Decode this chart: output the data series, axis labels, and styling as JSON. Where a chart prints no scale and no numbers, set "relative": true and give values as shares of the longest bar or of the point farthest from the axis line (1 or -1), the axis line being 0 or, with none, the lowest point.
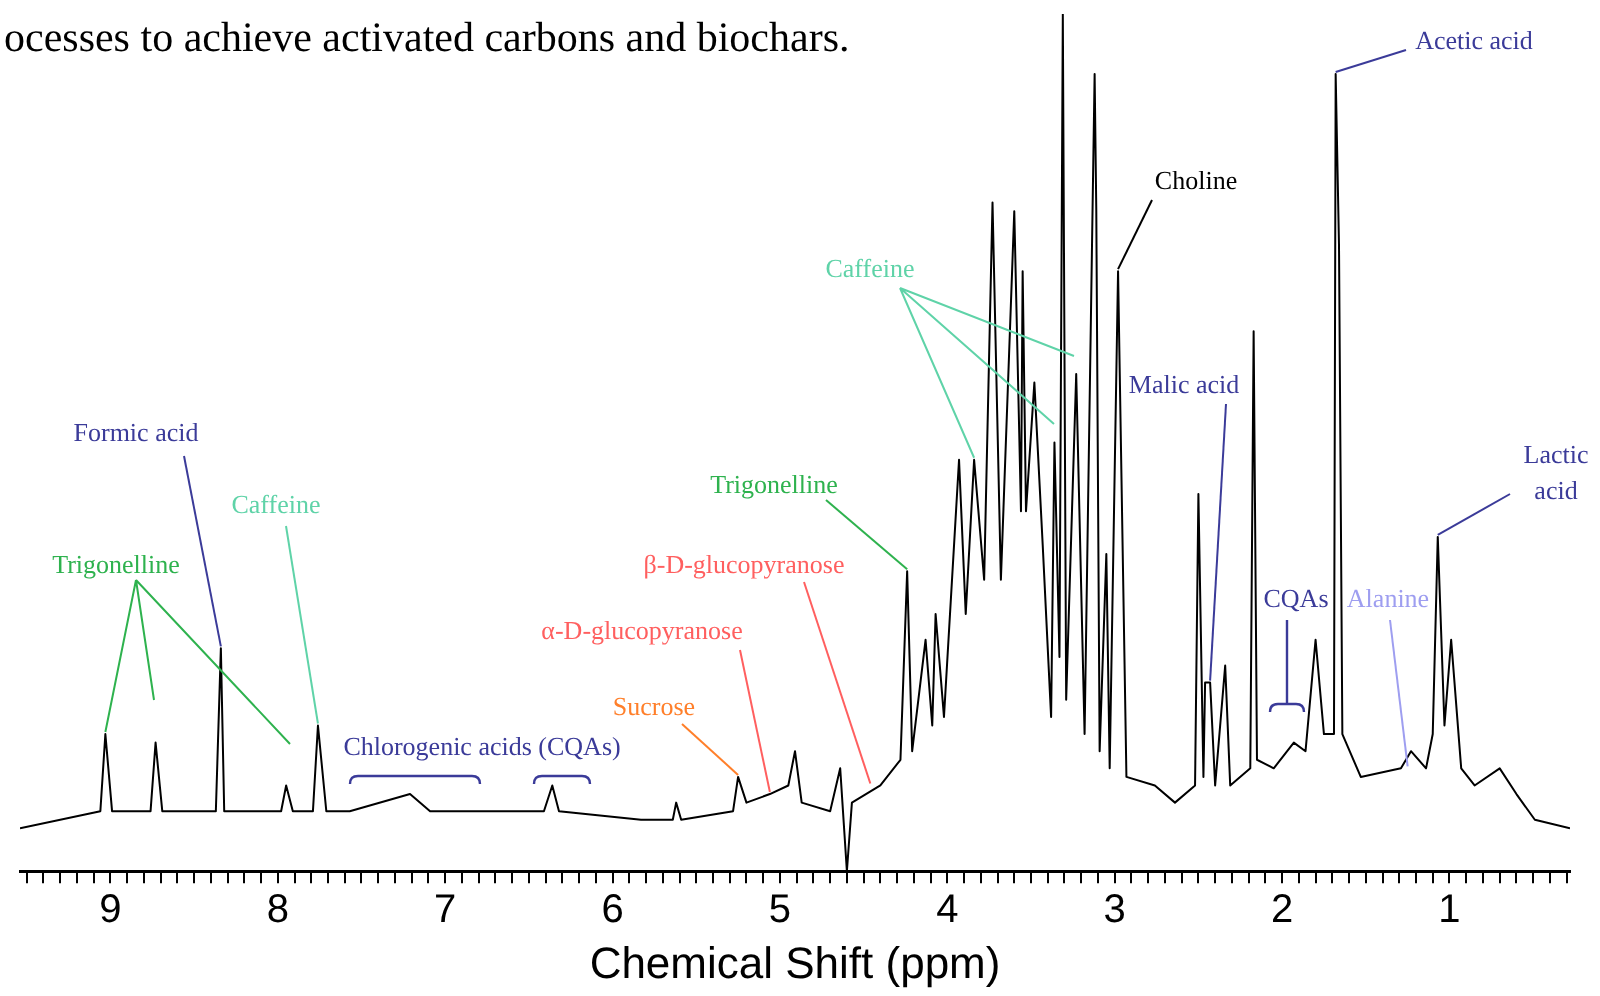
{
  "chart_data": {
    "type": "line",
    "relative": true,
    "xlabel": "Chemical Shift (ppm)",
    "xlim": [
      9.54,
      0.28
    ],
    "xticks": [
      {
        "value": 9.5,
        "label": null
      },
      {
        "value": 9.4,
        "label": null
      },
      {
        "value": 9.3,
        "label": null
      },
      {
        "value": 9.2,
        "label": null
      },
      {
        "value": 9.1,
        "label": null
      },
      9,
      {
        "value": 8.9,
        "label": null
      },
      {
        "value": 8.8,
        "label": null
      },
      {
        "value": 8.7,
        "label": null
      },
      {
        "value": 8.6,
        "label": null
      },
      {
        "value": 8.5,
        "label": null
      },
      {
        "value": 8.4,
        "label": null
      },
      {
        "value": 8.3,
        "label": null
      },
      {
        "value": 8.2,
        "label": null
      },
      {
        "value": 8.1,
        "label": null
      },
      8,
      {
        "value": 7.9,
        "label": null
      },
      {
        "value": 7.8,
        "label": null
      },
      {
        "value": 7.7,
        "label": null
      },
      {
        "value": 7.6,
        "label": null
      },
      {
        "value": 7.5,
        "label": null
      },
      {
        "value": 7.4,
        "label": null
      },
      {
        "value": 7.3,
        "label": null
      },
      {
        "value": 7.2,
        "label": null
      },
      {
        "value": 7.1,
        "label": null
      },
      7,
      {
        "value": 6.9,
        "label": null
      },
      {
        "value": 6.8,
        "label": null
      },
      {
        "value": 6.7,
        "label": null
      },
      {
        "value": 6.6,
        "label": null
      },
      {
        "value": 6.5,
        "label": null
      },
      {
        "value": 6.4,
        "label": null
      },
      {
        "value": 6.3,
        "label": null
      },
      {
        "value": 6.2,
        "label": null
      },
      {
        "value": 6.1,
        "label": null
      },
      6,
      {
        "value": 5.9,
        "label": null
      },
      {
        "value": 5.8,
        "label": null
      },
      {
        "value": 5.7,
        "label": null
      },
      {
        "value": 5.6,
        "label": null
      },
      {
        "value": 5.5,
        "label": null
      },
      {
        "value": 5.4,
        "label": null
      },
      {
        "value": 5.3,
        "label": null
      },
      {
        "value": 5.2,
        "label": null
      },
      {
        "value": 5.1,
        "label": null
      },
      5,
      {
        "value": 4.9,
        "label": null
      },
      {
        "value": 4.8,
        "label": null
      },
      {
        "value": 4.7,
        "label": null
      },
      {
        "value": 4.6,
        "label": null
      },
      {
        "value": 4.5,
        "label": null
      },
      {
        "value": 4.4,
        "label": null
      },
      {
        "value": 4.3,
        "label": null
      },
      {
        "value": 4.2,
        "label": null
      },
      {
        "value": 4.1,
        "label": null
      },
      4,
      {
        "value": 3.9,
        "label": null
      },
      {
        "value": 3.8,
        "label": null
      },
      {
        "value": 3.7,
        "label": null
      },
      {
        "value": 3.6,
        "label": null
      },
      {
        "value": 3.5,
        "label": null
      },
      {
        "value": 3.4,
        "label": null
      },
      {
        "value": 3.3,
        "label": null
      },
      {
        "value": 3.2,
        "label": null
      },
      {
        "value": 3.1,
        "label": null
      },
      3,
      {
        "value": 2.9,
        "label": null
      },
      {
        "value": 2.8,
        "label": null
      },
      {
        "value": 2.7,
        "label": null
      },
      {
        "value": 2.6,
        "label": null
      },
      {
        "value": 2.5,
        "label": null
      },
      {
        "value": 2.4,
        "label": null
      },
      {
        "value": 2.3,
        "label": null
      },
      {
        "value": 2.2,
        "label": null
      },
      {
        "value": 2.1,
        "label": null
      },
      2,
      {
        "value": 1.9,
        "label": null
      },
      {
        "value": 1.8,
        "label": null
      },
      {
        "value": 1.7,
        "label": null
      },
      {
        "value": 1.6,
        "label": null
      },
      {
        "value": 1.5,
        "label": null
      },
      {
        "value": 1.4,
        "label": null
      },
      {
        "value": 1.3,
        "label": null
      },
      {
        "value": 1.2,
        "label": null
      },
      {
        "value": 1.1,
        "label": null
      },
      1,
      {
        "value": 0.9,
        "label": null
      },
      {
        "value": 0.8,
        "label": null
      },
      {
        "value": 0.7,
        "label": null
      },
      {
        "value": 0.6,
        "label": null
      },
      {
        "value": 0.5,
        "label": null
      },
      {
        "value": 0.4,
        "label": null
      },
      {
        "value": 0.3,
        "label": null
      }
    ],
    "color": "#000000",
    "x": [
      9.54,
      9.06,
      9.03,
      8.99,
      8.76,
      8.73,
      8.69,
      8.37,
      8.34,
      8.32,
      7.98,
      7.95,
      7.91,
      7.79,
      7.76,
      7.71,
      7.57,
      7.21,
      7.09,
      6.73,
      6.41,
      6.36,
      6.32,
      5.83,
      5.64,
      5.62,
      5.59,
      5.28,
      5.25,
      5.2,
      5.06,
      4.95,
      4.91,
      4.87,
      4.7,
      4.64,
      4.6,
      4.57,
      4.4,
      4.28,
      4.24,
      4.21,
      4.13,
      4.09,
      4.07,
      4.02,
      3.93,
      3.89,
      3.84,
      3.78,
      3.73,
      3.68,
      3.6,
      3.56,
      3.55,
      3.53,
      3.48,
      3.43,
      3.38,
      3.36,
      3.33,
      3.31,
      3.29,
      3.23,
      3.18,
      3.12,
      3.11,
      3.09,
      3.05,
      3.03,
      2.98,
      2.93,
      2.76,
      2.64,
      2.52,
      2.5,
      2.47,
      2.46,
      2.43,
      2.4,
      2.34,
      2.31,
      2.19,
      2.17,
      2.15,
      2.05,
      1.93,
      1.86,
      1.8,
      1.75,
      1.69,
      1.68,
      1.66,
      1.64,
      1.53,
      1.29,
      1.23,
      1.14,
      1.1,
      1.07,
      1.03,
      0.99,
      0.93,
      0.85,
      0.7,
      0.6,
      0.49,
      0.28
    ],
    "values": [
      0.05,
      0.07,
      0.16,
      0.07,
      0.07,
      0.15,
      0.07,
      0.07,
      0.26,
      0.07,
      0.07,
      0.1,
      0.07,
      0.07,
      0.17,
      0.07,
      0.07,
      0.09,
      0.07,
      0.07,
      0.07,
      0.1,
      0.07,
      0.06,
      0.06,
      0.08,
      0.06,
      0.07,
      0.11,
      0.08,
      0.09,
      0.1,
      0.14,
      0.08,
      0.07,
      0.12,
      0,
      0.08,
      0.1,
      0.13,
      0.35,
      0.14,
      0.27,
      0.17,
      0.3,
      0.18,
      0.48,
      0.3,
      0.48,
      0.34,
      0.78,
      0.34,
      0.77,
      0.42,
      0.7,
      0.42,
      0.57,
      0.38,
      0.18,
      0.5,
      0.25,
      1,
      0.2,
      0.58,
      0.16,
      0.93,
      0.77,
      0.14,
      0.37,
      0.12,
      0.7,
      0.11,
      0.1,
      0.08,
      0.1,
      0.44,
      0.11,
      0.22,
      0.22,
      0.1,
      0.24,
      0.1,
      0.12,
      0.63,
      0.13,
      0.12,
      0.15,
      0.14,
      0.27,
      0.16,
      0.16,
      0.93,
      0.73,
      0.16,
      0.11,
      0.12,
      0.14,
      0.12,
      0.16,
      0.39,
      0.17,
      0.27,
      0.12,
      0.1,
      0.12,
      0.09,
      0.06,
      0.05
    ],
    "annotations": [
      "ocesses to achieve activated carbons and biochars.",
      {
        "text": "Trigonelline",
        "x": 9.03,
        "y": 0.16
      },
      {
        "text": "Formic acid",
        "x": 8.34,
        "y": 0.26
      },
      {
        "text": "Caffeine",
        "x": 7.76,
        "y": 0.17
      },
      {
        "text": "Chlorogenic acids (CQAs)",
        "x": 7.21,
        "y": 0.09
      },
      {
        "text": "Sucrose",
        "x": 5.25,
        "y": 0.11
      },
      {
        "text": "α-D-glucopyranose",
        "x": 5.06,
        "y": 0.09
      },
      {
        "text": "β-D-glucopyranose",
        "x": 4.46,
        "y": 0.1
      },
      {
        "text": "Trigonelline",
        "x": 4.24,
        "y": 0.35
      },
      {
        "text": "Caffeine",
        "x": 3.84,
        "y": 0.48
      },
      {
        "text": "Choline",
        "x": 2.98,
        "y": 0.7
      },
      {
        "text": "Malic acid",
        "x": 2.43,
        "y": 0.22
      },
      "CQAs",
      {
        "text": "Alanine",
        "x": 1.25,
        "y": 0.12
      },
      {
        "text": "Acetic acid",
        "x": 1.68,
        "y": 0.93
      },
      {
        "text": "Lactic acid",
        "x": 1.07,
        "y": 0.39
      }
    ]
  }
}
